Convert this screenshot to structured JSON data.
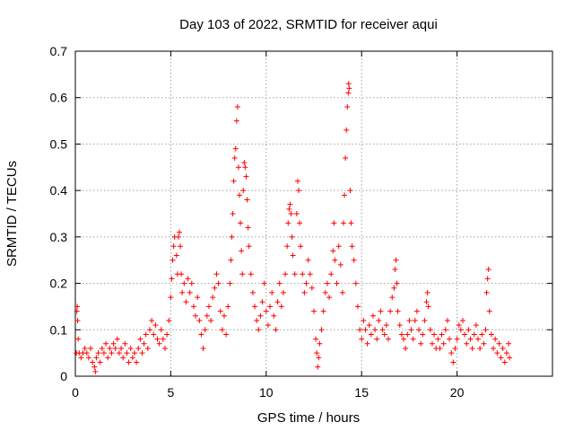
{
  "chart_data": {
    "type": "scatter",
    "title": "Day 103 of 2022, SRMTID for receiver aqui",
    "xlabel": "GPS time / hours",
    "ylabel": "SRMTID / TECUs",
    "xlim": [
      0,
      25
    ],
    "ylim": [
      0,
      0.7
    ],
    "xticks": [
      "0",
      "5",
      "10",
      "15",
      "20"
    ],
    "xtick_values": [
      0,
      5,
      10,
      15,
      20
    ],
    "yticks": [
      "0",
      "0.1",
      "0.2",
      "0.3",
      "0.4",
      "0.5",
      "0.6",
      "0.7"
    ],
    "ytick_values": [
      0,
      0.1,
      0.2,
      0.3,
      0.4,
      0.5,
      0.6,
      0.7
    ],
    "grid": true,
    "marker": "+",
    "color": "#ff0000",
    "series": [
      {
        "name": "SRMTID",
        "points": [
          [
            0.05,
            0.05
          ],
          [
            0.08,
            0.14
          ],
          [
            0.1,
            0.15
          ],
          [
            0.12,
            0.12
          ],
          [
            0.15,
            0.08
          ],
          [
            0.2,
            0.05
          ],
          [
            0.3,
            0.04
          ],
          [
            0.4,
            0.05
          ],
          [
            0.5,
            0.06
          ],
          [
            0.6,
            0.05
          ],
          [
            0.7,
            0.04
          ],
          [
            0.8,
            0.06
          ],
          [
            0.9,
            0.03
          ],
          [
            1.0,
            0.02
          ],
          [
            1.05,
            0.01
          ],
          [
            1.1,
            0.04
          ],
          [
            1.2,
            0.05
          ],
          [
            1.3,
            0.03
          ],
          [
            1.4,
            0.06
          ],
          [
            1.5,
            0.05
          ],
          [
            1.6,
            0.07
          ],
          [
            1.7,
            0.04
          ],
          [
            1.8,
            0.06
          ],
          [
            1.9,
            0.05
          ],
          [
            2.0,
            0.07
          ],
          [
            2.1,
            0.06
          ],
          [
            2.2,
            0.08
          ],
          [
            2.3,
            0.05
          ],
          [
            2.4,
            0.06
          ],
          [
            2.5,
            0.04
          ],
          [
            2.6,
            0.07
          ],
          [
            2.7,
            0.05
          ],
          [
            2.8,
            0.03
          ],
          [
            2.9,
            0.06
          ],
          [
            3.0,
            0.04
          ],
          [
            3.1,
            0.05
          ],
          [
            3.2,
            0.03
          ],
          [
            3.3,
            0.06
          ],
          [
            3.4,
            0.08
          ],
          [
            3.5,
            0.05
          ],
          [
            3.6,
            0.07
          ],
          [
            3.7,
            0.09
          ],
          [
            3.8,
            0.06
          ],
          [
            3.9,
            0.1
          ],
          [
            4.0,
            0.12
          ],
          [
            4.1,
            0.09
          ],
          [
            4.2,
            0.11
          ],
          [
            4.3,
            0.08
          ],
          [
            4.4,
            0.07
          ],
          [
            4.5,
            0.1
          ],
          [
            4.6,
            0.08
          ],
          [
            4.7,
            0.06
          ],
          [
            4.8,
            0.09
          ],
          [
            4.9,
            0.12
          ],
          [
            5.0,
            0.17
          ],
          [
            5.05,
            0.21
          ],
          [
            5.1,
            0.25
          ],
          [
            5.15,
            0.28
          ],
          [
            5.2,
            0.3
          ],
          [
            5.3,
            0.26
          ],
          [
            5.35,
            0.22
          ],
          [
            5.4,
            0.3
          ],
          [
            5.45,
            0.31
          ],
          [
            5.5,
            0.28
          ],
          [
            5.55,
            0.22
          ],
          [
            5.6,
            0.18
          ],
          [
            5.7,
            0.2
          ],
          [
            5.8,
            0.16
          ],
          [
            5.9,
            0.21
          ],
          [
            6.0,
            0.18
          ],
          [
            6.1,
            0.2
          ],
          [
            6.2,
            0.15
          ],
          [
            6.3,
            0.13
          ],
          [
            6.4,
            0.17
          ],
          [
            6.5,
            0.12
          ],
          [
            6.6,
            0.09
          ],
          [
            6.7,
            0.06
          ],
          [
            6.8,
            0.1
          ],
          [
            6.9,
            0.13
          ],
          [
            7.0,
            0.15
          ],
          [
            7.1,
            0.12
          ],
          [
            7.2,
            0.17
          ],
          [
            7.3,
            0.19
          ],
          [
            7.4,
            0.22
          ],
          [
            7.5,
            0.2
          ],
          [
            7.6,
            0.14
          ],
          [
            7.7,
            0.1
          ],
          [
            7.8,
            0.13
          ],
          [
            7.9,
            0.09
          ],
          [
            8.0,
            0.15
          ],
          [
            8.1,
            0.2
          ],
          [
            8.15,
            0.25
          ],
          [
            8.2,
            0.3
          ],
          [
            8.25,
            0.35
          ],
          [
            8.3,
            0.42
          ],
          [
            8.35,
            0.47
          ],
          [
            8.4,
            0.49
          ],
          [
            8.45,
            0.55
          ],
          [
            8.5,
            0.58
          ],
          [
            8.55,
            0.45
          ],
          [
            8.6,
            0.39
          ],
          [
            8.65,
            0.33
          ],
          [
            8.7,
            0.27
          ],
          [
            8.75,
            0.22
          ],
          [
            8.8,
            0.4
          ],
          [
            8.85,
            0.46
          ],
          [
            8.9,
            0.45
          ],
          [
            8.95,
            0.43
          ],
          [
            9.0,
            0.38
          ],
          [
            9.05,
            0.32
          ],
          [
            9.1,
            0.28
          ],
          [
            9.2,
            0.22
          ],
          [
            9.3,
            0.18
          ],
          [
            9.4,
            0.15
          ],
          [
            9.5,
            0.12
          ],
          [
            9.6,
            0.1
          ],
          [
            9.7,
            0.13
          ],
          [
            9.8,
            0.16
          ],
          [
            9.9,
            0.2
          ],
          [
            10.0,
            0.14
          ],
          [
            10.1,
            0.11
          ],
          [
            10.2,
            0.15
          ],
          [
            10.3,
            0.18
          ],
          [
            10.4,
            0.13
          ],
          [
            10.5,
            0.1
          ],
          [
            10.6,
            0.16
          ],
          [
            10.7,
            0.2
          ],
          [
            10.8,
            0.15
          ],
          [
            10.9,
            0.18
          ],
          [
            11.0,
            0.22
          ],
          [
            11.1,
            0.28
          ],
          [
            11.15,
            0.33
          ],
          [
            11.2,
            0.36
          ],
          [
            11.25,
            0.37
          ],
          [
            11.3,
            0.35
          ],
          [
            11.35,
            0.3
          ],
          [
            11.4,
            0.26
          ],
          [
            11.5,
            0.22
          ],
          [
            11.6,
            0.35
          ],
          [
            11.65,
            0.42
          ],
          [
            11.7,
            0.4
          ],
          [
            11.75,
            0.33
          ],
          [
            11.8,
            0.28
          ],
          [
            11.9,
            0.22
          ],
          [
            12.0,
            0.18
          ],
          [
            12.1,
            0.2
          ],
          [
            12.2,
            0.25
          ],
          [
            12.3,
            0.22
          ],
          [
            12.4,
            0.19
          ],
          [
            12.5,
            0.14
          ],
          [
            12.6,
            0.08
          ],
          [
            12.65,
            0.05
          ],
          [
            12.7,
            0.02
          ],
          [
            12.75,
            0.04
          ],
          [
            12.8,
            0.07
          ],
          [
            12.9,
            0.1
          ],
          [
            13.0,
            0.14
          ],
          [
            13.1,
            0.18
          ],
          [
            13.2,
            0.2
          ],
          [
            13.3,
            0.17
          ],
          [
            13.4,
            0.22
          ],
          [
            13.5,
            0.27
          ],
          [
            13.55,
            0.33
          ],
          [
            13.6,
            0.25
          ],
          [
            13.7,
            0.2
          ],
          [
            13.8,
            0.28
          ],
          [
            13.9,
            0.24
          ],
          [
            14.0,
            0.18
          ],
          [
            14.05,
            0.33
          ],
          [
            14.1,
            0.39
          ],
          [
            14.15,
            0.47
          ],
          [
            14.2,
            0.53
          ],
          [
            14.25,
            0.58
          ],
          [
            14.3,
            0.61
          ],
          [
            14.32,
            0.63
          ],
          [
            14.35,
            0.62
          ],
          [
            14.4,
            0.4
          ],
          [
            14.45,
            0.33
          ],
          [
            14.5,
            0.28
          ],
          [
            14.6,
            0.25
          ],
          [
            14.7,
            0.2
          ],
          [
            14.8,
            0.15
          ],
          [
            14.9,
            0.1
          ],
          [
            15.0,
            0.08
          ],
          [
            15.1,
            0.12
          ],
          [
            15.2,
            0.1
          ],
          [
            15.3,
            0.07
          ],
          [
            15.4,
            0.11
          ],
          [
            15.5,
            0.09
          ],
          [
            15.6,
            0.13
          ],
          [
            15.7,
            0.1
          ],
          [
            15.8,
            0.08
          ],
          [
            15.9,
            0.12
          ],
          [
            16.0,
            0.14
          ],
          [
            16.1,
            0.1
          ],
          [
            16.2,
            0.09
          ],
          [
            16.3,
            0.11
          ],
          [
            16.4,
            0.08
          ],
          [
            16.5,
            0.14
          ],
          [
            16.6,
            0.17
          ],
          [
            16.7,
            0.19
          ],
          [
            16.75,
            0.23
          ],
          [
            16.8,
            0.25
          ],
          [
            16.85,
            0.2
          ],
          [
            16.9,
            0.14
          ],
          [
            17.0,
            0.11
          ],
          [
            17.1,
            0.09
          ],
          [
            17.2,
            0.08
          ],
          [
            17.3,
            0.06
          ],
          [
            17.4,
            0.09
          ],
          [
            17.5,
            0.12
          ],
          [
            17.6,
            0.1
          ],
          [
            17.7,
            0.08
          ],
          [
            17.8,
            0.12
          ],
          [
            17.9,
            0.14
          ],
          [
            18.0,
            0.1
          ],
          [
            18.1,
            0.07
          ],
          [
            18.2,
            0.09
          ],
          [
            18.3,
            0.12
          ],
          [
            18.4,
            0.16
          ],
          [
            18.45,
            0.18
          ],
          [
            18.5,
            0.15
          ],
          [
            18.6,
            0.1
          ],
          [
            18.7,
            0.07
          ],
          [
            18.8,
            0.09
          ],
          [
            18.9,
            0.06
          ],
          [
            19.0,
            0.08
          ],
          [
            19.1,
            0.06
          ],
          [
            19.2,
            0.09
          ],
          [
            19.3,
            0.07
          ],
          [
            19.4,
            0.1
          ],
          [
            19.5,
            0.12
          ],
          [
            19.6,
            0.08
          ],
          [
            19.7,
            0.05
          ],
          [
            19.8,
            0.03
          ],
          [
            19.9,
            0.06
          ],
          [
            20.0,
            0.08
          ],
          [
            20.1,
            0.11
          ],
          [
            20.2,
            0.1
          ],
          [
            20.3,
            0.12
          ],
          [
            20.4,
            0.09
          ],
          [
            20.5,
            0.07
          ],
          [
            20.6,
            0.1
          ],
          [
            20.7,
            0.08
          ],
          [
            20.8,
            0.06
          ],
          [
            20.9,
            0.09
          ],
          [
            21.0,
            0.11
          ],
          [
            21.1,
            0.08
          ],
          [
            21.2,
            0.06
          ],
          [
            21.3,
            0.09
          ],
          [
            21.4,
            0.07
          ],
          [
            21.5,
            0.1
          ],
          [
            21.55,
            0.18
          ],
          [
            21.6,
            0.21
          ],
          [
            21.65,
            0.23
          ],
          [
            21.7,
            0.14
          ],
          [
            21.8,
            0.09
          ],
          [
            21.9,
            0.06
          ],
          [
            22.0,
            0.08
          ],
          [
            22.1,
            0.05
          ],
          [
            22.2,
            0.07
          ],
          [
            22.3,
            0.04
          ],
          [
            22.4,
            0.06
          ],
          [
            22.5,
            0.03
          ],
          [
            22.6,
            0.05
          ],
          [
            22.7,
            0.07
          ],
          [
            22.75,
            0.04
          ]
        ]
      }
    ]
  }
}
